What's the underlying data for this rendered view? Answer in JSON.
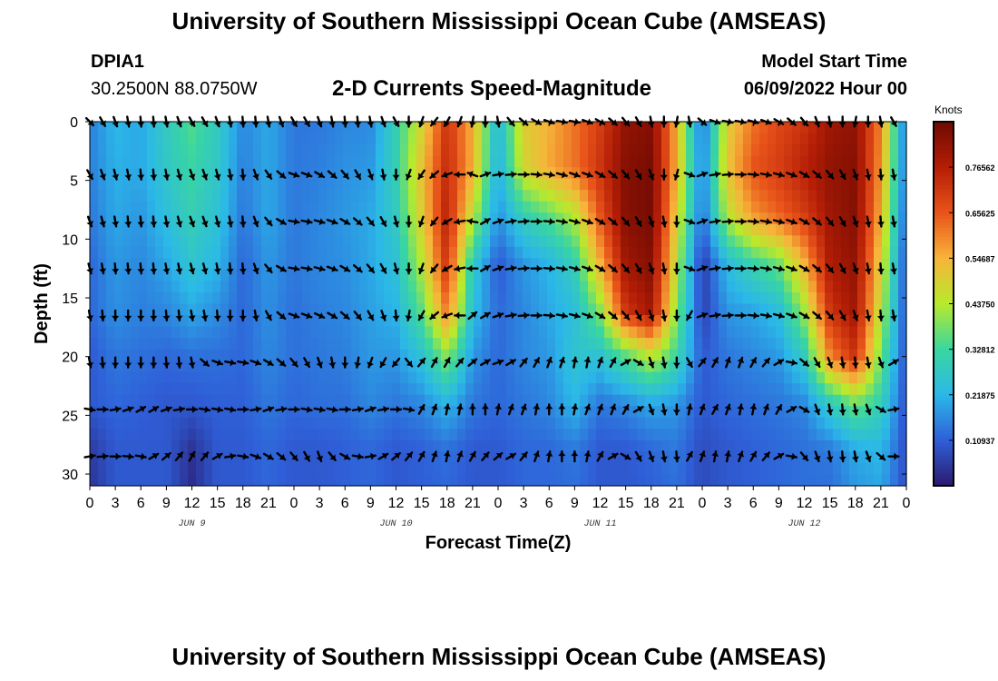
{
  "header": {
    "title": "University of Southern Mississippi Ocean Cube (AMSEAS)",
    "station_id": "DPIA1",
    "station_coords": "30.2500N  88.0750W",
    "subtitle": "2-D Currents Speed-Magnitude",
    "model_start_label": "Model Start Time",
    "model_start_value": "06/09/2022 Hour 00"
  },
  "footer": {
    "title": "University of Southern Mississippi Ocean Cube (AMSEAS)"
  },
  "colors": {
    "scale": [
      "#2b1a6e",
      "#2f5fd8",
      "#2bb8e8",
      "#3ad6a0",
      "#b7ea2c",
      "#f7b43a",
      "#e8531a",
      "#b51e06",
      "#6e0a02"
    ]
  },
  "chart_data": {
    "type": "heatmap",
    "title": "2-D Currents Speed-Magnitude",
    "xlabel": "Forecast Time(Z)",
    "ylabel": "Depth (ft)",
    "ylim": [
      0,
      31
    ],
    "x_ticks": [
      "0",
      "3",
      "6",
      "9",
      "12",
      "15",
      "18",
      "21",
      "0",
      "3",
      "6",
      "9",
      "12",
      "15",
      "18",
      "21",
      "0",
      "3",
      "6",
      "9",
      "12",
      "15",
      "18",
      "21",
      "0",
      "3",
      "6",
      "9",
      "12",
      "15",
      "18",
      "21",
      "0"
    ],
    "y_ticks": [
      "0",
      "5",
      "10",
      "15",
      "20",
      "25",
      "30"
    ],
    "y_tick_values": [
      0,
      5,
      10,
      15,
      20,
      25,
      30
    ],
    "date_labels": [
      "JUN 9",
      "JUN 10",
      "JUN 11",
      "JUN 12"
    ],
    "date_label_hours": [
      12,
      36,
      60,
      84
    ],
    "x_range_hours": [
      0,
      96
    ],
    "colorbar": {
      "label": "Knots",
      "ticks": [
        "0.76562",
        "0.65625",
        "0.54687",
        "0.43750",
        "0.32812",
        "0.21875",
        "0.10937"
      ],
      "tick_values": [
        0.76562,
        0.65625,
        0.54687,
        0.4375,
        0.32812,
        0.21875,
        0.10937
      ],
      "range": [
        0,
        0.875
      ]
    },
    "depths_ft": [
      0,
      4,
      8,
      12,
      16,
      20,
      24,
      28,
      31
    ],
    "hours": [
      0,
      3,
      6,
      9,
      12,
      15,
      18,
      21,
      24,
      27,
      30,
      33,
      36,
      39,
      42,
      45,
      48,
      51,
      54,
      57,
      60,
      63,
      66,
      69,
      72,
      75,
      78,
      81,
      84,
      87,
      90,
      93,
      96
    ],
    "speed_knots": [
      [
        0.15,
        0.22,
        0.2,
        0.28,
        0.35,
        0.28,
        0.16,
        0.2,
        0.14,
        0.14,
        0.16,
        0.16,
        0.3,
        0.48,
        0.72,
        0.55,
        0.22,
        0.5,
        0.55,
        0.62,
        0.7,
        0.82,
        0.84,
        0.55,
        0.12,
        0.5,
        0.62,
        0.68,
        0.72,
        0.8,
        0.82,
        0.6,
        0.12
      ],
      [
        0.15,
        0.21,
        0.2,
        0.27,
        0.32,
        0.27,
        0.15,
        0.2,
        0.14,
        0.15,
        0.17,
        0.18,
        0.3,
        0.52,
        0.74,
        0.55,
        0.2,
        0.48,
        0.56,
        0.62,
        0.72,
        0.84,
        0.86,
        0.55,
        0.14,
        0.52,
        0.66,
        0.7,
        0.76,
        0.82,
        0.84,
        0.58,
        0.12
      ],
      [
        0.14,
        0.2,
        0.18,
        0.24,
        0.3,
        0.25,
        0.14,
        0.2,
        0.14,
        0.16,
        0.18,
        0.2,
        0.28,
        0.5,
        0.76,
        0.45,
        0.17,
        0.3,
        0.36,
        0.44,
        0.66,
        0.84,
        0.86,
        0.5,
        0.12,
        0.45,
        0.58,
        0.64,
        0.7,
        0.8,
        0.84,
        0.55,
        0.1
      ],
      [
        0.12,
        0.18,
        0.16,
        0.2,
        0.26,
        0.22,
        0.12,
        0.18,
        0.14,
        0.16,
        0.17,
        0.2,
        0.25,
        0.44,
        0.72,
        0.28,
        0.1,
        0.18,
        0.22,
        0.3,
        0.55,
        0.8,
        0.84,
        0.45,
        0.05,
        0.24,
        0.32,
        0.38,
        0.55,
        0.78,
        0.82,
        0.5,
        0.08
      ],
      [
        0.12,
        0.17,
        0.15,
        0.16,
        0.2,
        0.17,
        0.12,
        0.17,
        0.13,
        0.15,
        0.16,
        0.19,
        0.22,
        0.36,
        0.62,
        0.24,
        0.12,
        0.16,
        0.2,
        0.24,
        0.4,
        0.72,
        0.8,
        0.4,
        0.06,
        0.18,
        0.2,
        0.24,
        0.42,
        0.72,
        0.8,
        0.45,
        0.08
      ],
      [
        0.1,
        0.14,
        0.13,
        0.12,
        0.13,
        0.13,
        0.12,
        0.16,
        0.13,
        0.14,
        0.15,
        0.18,
        0.18,
        0.25,
        0.4,
        0.18,
        0.12,
        0.16,
        0.18,
        0.26,
        0.25,
        0.35,
        0.45,
        0.32,
        0.1,
        0.14,
        0.16,
        0.18,
        0.28,
        0.6,
        0.72,
        0.38,
        0.08
      ],
      [
        0.1,
        0.12,
        0.11,
        0.1,
        0.1,
        0.11,
        0.11,
        0.14,
        0.12,
        0.13,
        0.13,
        0.16,
        0.14,
        0.16,
        0.22,
        0.14,
        0.12,
        0.14,
        0.16,
        0.22,
        0.14,
        0.16,
        0.2,
        0.18,
        0.1,
        0.12,
        0.13,
        0.14,
        0.16,
        0.28,
        0.38,
        0.3,
        0.08
      ],
      [
        0.05,
        0.1,
        0.1,
        0.1,
        0.04,
        0.1,
        0.1,
        0.12,
        0.1,
        0.1,
        0.11,
        0.12,
        0.1,
        0.11,
        0.13,
        0.1,
        0.1,
        0.12,
        0.12,
        0.14,
        0.1,
        0.1,
        0.12,
        0.14,
        0.08,
        0.1,
        0.11,
        0.12,
        0.13,
        0.14,
        0.2,
        0.22,
        0.08
      ],
      [
        0.04,
        0.1,
        0.1,
        0.1,
        0.03,
        0.1,
        0.1,
        0.12,
        0.1,
        0.1,
        0.11,
        0.12,
        0.1,
        0.11,
        0.12,
        0.1,
        0.1,
        0.12,
        0.12,
        0.13,
        0.1,
        0.1,
        0.11,
        0.13,
        0.08,
        0.1,
        0.11,
        0.12,
        0.13,
        0.13,
        0.18,
        0.2,
        0.08
      ]
    ],
    "vector_depths_ft": [
      0,
      4.5,
      8.5,
      12.5,
      16.5,
      20.5,
      24.5,
      28.5
    ],
    "vector_hours": [
      0,
      1.5,
      3,
      4.5,
      6,
      7.5,
      9,
      10.5,
      12,
      13.5,
      15,
      16.5,
      18,
      19.5,
      21,
      22.5,
      24,
      25.5,
      27,
      28.5,
      30,
      31.5,
      33,
      34.5,
      36,
      37.5,
      39,
      40.5,
      42,
      43.5,
      45,
      46.5,
      48,
      49.5,
      51,
      52.5,
      54,
      55.5,
      57,
      58.5,
      60,
      61.5,
      63,
      64.5,
      66,
      67.5,
      69,
      70.5,
      72,
      73.5,
      75,
      76.5,
      78,
      79.5,
      81,
      82.5,
      84,
      85.5,
      87,
      88.5,
      90,
      91.5,
      93,
      94.5
    ],
    "vector_direction_deg": [
      [
        135,
        150,
        160,
        170,
        175,
        175,
        170,
        160,
        150,
        150,
        160,
        170,
        175,
        175,
        170,
        160,
        150,
        150,
        160,
        170,
        175,
        175,
        170,
        160,
        150,
        180,
        200,
        220,
        210,
        200,
        190,
        180,
        170,
        140,
        130,
        120,
        110,
        100,
        100,
        110,
        120,
        130,
        140,
        150,
        170,
        180,
        190,
        170,
        130,
        110,
        100,
        100,
        105,
        110,
        120,
        130,
        140,
        160,
        170,
        180,
        190,
        180,
        170,
        150
      ],
      [
        150,
        160,
        165,
        170,
        175,
        175,
        170,
        165,
        160,
        160,
        165,
        170,
        175,
        160,
        145,
        130,
        110,
        110,
        120,
        130,
        140,
        150,
        160,
        170,
        180,
        200,
        215,
        230,
        250,
        270,
        290,
        70,
        80,
        85,
        90,
        95,
        100,
        105,
        110,
        110,
        120,
        130,
        140,
        150,
        160,
        180,
        195,
        110,
        70,
        80,
        85,
        90,
        95,
        100,
        105,
        110,
        120,
        130,
        140,
        150,
        160,
        170,
        175,
        170
      ],
      [
        160,
        165,
        170,
        175,
        175,
        175,
        170,
        165,
        160,
        160,
        165,
        170,
        175,
        160,
        140,
        120,
        100,
        100,
        105,
        110,
        120,
        130,
        140,
        150,
        165,
        180,
        200,
        220,
        240,
        260,
        280,
        60,
        70,
        80,
        85,
        90,
        95,
        100,
        105,
        110,
        120,
        130,
        140,
        150,
        160,
        170,
        180,
        110,
        70,
        80,
        85,
        90,
        95,
        100,
        105,
        110,
        120,
        130,
        140,
        150,
        160,
        170,
        175,
        170
      ],
      [
        165,
        170,
        175,
        175,
        175,
        175,
        170,
        170,
        165,
        165,
        170,
        175,
        175,
        160,
        140,
        120,
        100,
        100,
        105,
        110,
        120,
        130,
        140,
        150,
        165,
        180,
        200,
        220,
        240,
        260,
        270,
        60,
        70,
        80,
        85,
        90,
        95,
        100,
        105,
        110,
        120,
        130,
        140,
        150,
        160,
        170,
        180,
        110,
        70,
        80,
        85,
        90,
        95,
        100,
        105,
        110,
        120,
        130,
        140,
        150,
        160,
        170,
        175,
        170
      ],
      [
        170,
        175,
        180,
        180,
        180,
        180,
        175,
        175,
        170,
        170,
        175,
        180,
        180,
        170,
        150,
        130,
        110,
        110,
        115,
        120,
        130,
        140,
        150,
        160,
        175,
        190,
        210,
        230,
        250,
        270,
        50,
        60,
        70,
        80,
        85,
        90,
        95,
        100,
        105,
        110,
        120,
        130,
        140,
        150,
        160,
        170,
        180,
        210,
        70,
        80,
        85,
        90,
        95,
        100,
        105,
        110,
        120,
        130,
        140,
        150,
        160,
        170,
        175,
        170
      ],
      [
        170,
        175,
        180,
        180,
        180,
        180,
        175,
        175,
        170,
        130,
        110,
        100,
        100,
        110,
        120,
        130,
        140,
        150,
        160,
        170,
        180,
        190,
        200,
        210,
        220,
        140,
        40,
        30,
        30,
        40,
        50,
        60,
        70,
        60,
        40,
        30,
        20,
        20,
        10,
        10,
        20,
        30,
        60,
        120,
        160,
        170,
        180,
        150,
        40,
        30,
        20,
        20,
        30,
        40,
        60,
        100,
        130,
        150,
        160,
        170,
        175,
        170,
        160,
        60
      ],
      [
        100,
        90,
        80,
        70,
        60,
        60,
        70,
        80,
        90,
        100,
        100,
        100,
        90,
        80,
        70,
        80,
        90,
        100,
        100,
        100,
        90,
        80,
        70,
        80,
        90,
        100,
        30,
        20,
        10,
        10,
        0,
        0,
        10,
        20,
        20,
        10,
        0,
        0,
        10,
        20,
        20,
        20,
        30,
        60,
        160,
        170,
        180,
        10,
        20,
        30,
        20,
        10,
        10,
        20,
        30,
        60,
        120,
        160,
        170,
        175,
        170,
        160,
        120,
        80
      ],
      [
        80,
        85,
        90,
        95,
        100,
        60,
        50,
        40,
        30,
        40,
        60,
        80,
        100,
        110,
        120,
        130,
        140,
        150,
        160,
        140,
        120,
        100,
        80,
        60,
        50,
        40,
        30,
        20,
        10,
        20,
        30,
        40,
        50,
        60,
        40,
        20,
        10,
        0,
        0,
        10,
        30,
        60,
        120,
        150,
        160,
        170,
        175,
        30,
        20,
        10,
        10,
        20,
        30,
        40,
        60,
        100,
        140,
        160,
        170,
        175,
        170,
        160,
        130,
        90
      ]
    ]
  }
}
